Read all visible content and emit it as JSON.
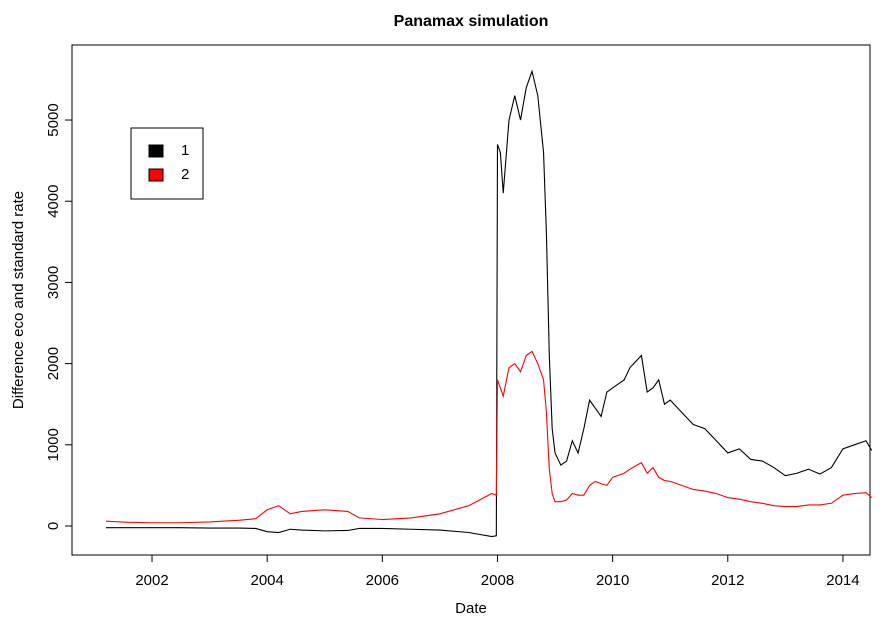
{
  "chart_data": {
    "type": "line",
    "title": "Panamax simulation",
    "xlabel": "Date",
    "ylabel": "Difference eco and standard rate",
    "x": [
      2001.2,
      2001.6,
      2002,
      2002.5,
      2003,
      2003.5,
      2003.8,
      2004,
      2004.2,
      2004.4,
      2004.6,
      2005,
      2005.4,
      2005.6,
      2006,
      2006.5,
      2007,
      2007.5,
      2007.9,
      2007.98,
      2008.0,
      2008.05,
      2008.1,
      2008.2,
      2008.3,
      2008.4,
      2008.5,
      2008.6,
      2008.7,
      2008.8,
      2008.85,
      2008.9,
      2008.95,
      2009.0,
      2009.1,
      2009.2,
      2009.3,
      2009.4,
      2009.5,
      2009.6,
      2009.7,
      2009.8,
      2009.9,
      2010.0,
      2010.2,
      2010.3,
      2010.5,
      2010.6,
      2010.7,
      2010.8,
      2010.9,
      2011.0,
      2011.2,
      2011.4,
      2011.6,
      2011.8,
      2012.0,
      2012.2,
      2012.4,
      2012.6,
      2012.8,
      2013.0,
      2013.2,
      2013.4,
      2013.6,
      2013.8,
      2014.0,
      2014.2,
      2014.4,
      2014.5
    ],
    "series": [
      {
        "name": "1",
        "color": "#000000",
        "values": [
          -20,
          -20,
          -20,
          -20,
          -25,
          -25,
          -30,
          -70,
          -80,
          -40,
          -50,
          -60,
          -55,
          -30,
          -30,
          -40,
          -50,
          -80,
          -130,
          -120,
          4700,
          4600,
          4100,
          5000,
          5300,
          5000,
          5400,
          5600,
          5300,
          4600,
          3600,
          2100,
          1200,
          900,
          750,
          800,
          1050,
          900,
          1200,
          1550,
          1450,
          1350,
          1650,
          1700,
          1800,
          1950,
          2100,
          1650,
          1700,
          1800,
          1500,
          1550,
          1400,
          1250,
          1200,
          1050,
          900,
          950,
          820,
          800,
          720,
          620,
          650,
          700,
          640,
          720,
          950,
          1000,
          1050,
          930
        ]
      },
      {
        "name": "2",
        "color": "#ff0000",
        "values": [
          60,
          45,
          40,
          40,
          50,
          70,
          90,
          200,
          250,
          150,
          180,
          200,
          180,
          100,
          80,
          100,
          150,
          250,
          400,
          380,
          1800,
          1700,
          1600,
          1950,
          2000,
          1900,
          2100,
          2150,
          2000,
          1800,
          1400,
          700,
          400,
          300,
          300,
          320,
          400,
          380,
          380,
          500,
          550,
          520,
          500,
          600,
          650,
          700,
          780,
          650,
          720,
          600,
          560,
          550,
          500,
          450,
          430,
          400,
          350,
          330,
          300,
          280,
          250,
          240,
          240,
          260,
          260,
          280,
          380,
          400,
          410,
          350
        ]
      }
    ],
    "xlim": [
      2000.61,
      2014.47
    ],
    "xticks": [
      2002,
      2004,
      2006,
      2008,
      2010,
      2012,
      2014
    ],
    "ylim": [
      -357,
      5924
    ],
    "yticks": [
      0,
      1000,
      2000,
      3000,
      4000,
      5000
    ],
    "legend": "top-left"
  }
}
